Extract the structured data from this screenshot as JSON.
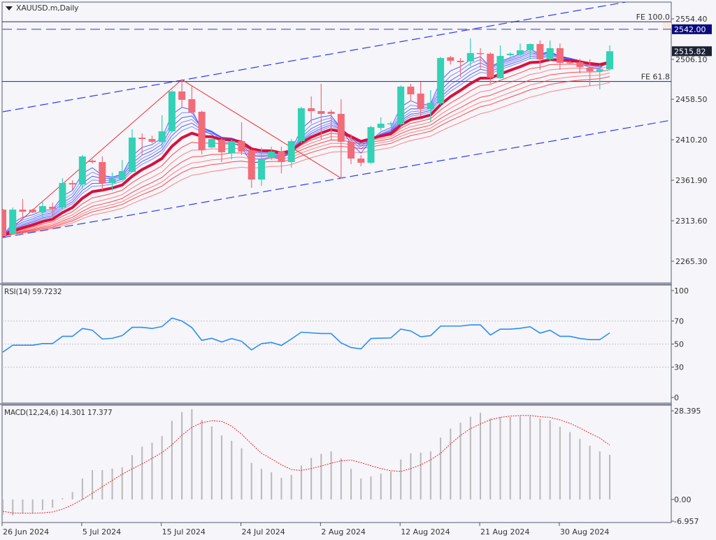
{
  "header": {
    "symbol_label": "XAUUSD.m,Daily"
  },
  "colors": {
    "bull": "#33d1b5",
    "bear": "#f26b78",
    "background": "#f5f5fa",
    "short_ema": "#3444ff",
    "long_ema": "#ff3636",
    "main_ema": "#d8103c",
    "rsi": "#2b8ef0",
    "macd_hist": "#b9b9b9",
    "macd_signal": "#ee2222",
    "channel": "#2a3cf0",
    "level_box": "#0b0b7c",
    "price_box": "#1c2233"
  },
  "chart_data": [
    {
      "type": "candlestick",
      "title": "XAUUSD.m,Daily",
      "ylim": [
        2248,
        2578
      ],
      "y_ticks": [
        "2554.40",
        "2506.10",
        "2458.50",
        "2410.20",
        "2361.90",
        "2313.60",
        "2265.30"
      ],
      "x_ticks": [
        {
          "label": "26 Jun 2024",
          "bar": 0
        },
        {
          "label": "5 Jul 2024",
          "bar": 8
        },
        {
          "label": "15 Jul 2024",
          "bar": 16
        },
        {
          "label": "24 Jul 2024",
          "bar": 24
        },
        {
          "label": "2 Aug 2024",
          "bar": 32
        },
        {
          "label": "12 Aug 2024",
          "bar": 40
        },
        {
          "label": "21 Aug 2024",
          "bar": 48
        },
        {
          "label": "30 Aug 2024",
          "bar": 56
        }
      ],
      "ohlc": [
        [
          2326.9,
          2327.8,
          2294.0,
          2295.3
        ],
        [
          2297.8,
          2329.4,
          2297.0,
          2326.9
        ],
        [
          2326.9,
          2339.4,
          2316.9,
          2324.4
        ],
        [
          2326.9,
          2327.8,
          2322.8,
          2323.6
        ],
        [
          2323.6,
          2336.9,
          2316.9,
          2331.1
        ],
        [
          2330.3,
          2335.3,
          2319.0,
          2327.8
        ],
        [
          2329.4,
          2364.4,
          2327.8,
          2358.6
        ],
        [
          2358.6,
          2361.9,
          2350.3,
          2356.9
        ],
        [
          2356.9,
          2392.0,
          2351.9,
          2390.3
        ],
        [
          2385.3,
          2386.9,
          2382.0,
          2383.6
        ],
        [
          2383.6,
          2390.3,
          2350.3,
          2358.6
        ],
        [
          2358.6,
          2371.1,
          2349.4,
          2363.6
        ],
        [
          2362.8,
          2386.1,
          2361.9,
          2372.8
        ],
        [
          2371.9,
          2422.8,
          2371.1,
          2412.8
        ],
        [
          2412.8,
          2417.8,
          2391.1,
          2411.1
        ],
        [
          2411.1,
          2415.0,
          2406.0,
          2407.8
        ],
        [
          2407.8,
          2439.4,
          2400.3,
          2420.3
        ],
        [
          2420.3,
          2469.4,
          2418.6,
          2467.8
        ],
        [
          2467.8,
          2481.9,
          2449.4,
          2457.8
        ],
        [
          2458.6,
          2474.4,
          2441.1,
          2442.8
        ],
        [
          2443.6,
          2445.0,
          2392.8,
          2397.8
        ],
        [
          2401.1,
          2412.8,
          2400.3,
          2411.1
        ],
        [
          2410.3,
          2412.0,
          2383.6,
          2395.3
        ],
        [
          2394.4,
          2410.3,
          2386.9,
          2408.6
        ],
        [
          2408.6,
          2431.1,
          2391.9,
          2396.1
        ],
        [
          2397.8,
          2399.0,
          2352.8,
          2362.8
        ],
        [
          2362.8,
          2401.0,
          2355.3,
          2386.9
        ],
        [
          2388.6,
          2402.0,
          2386.1,
          2396.1
        ],
        [
          2396.1,
          2402.0,
          2370.3,
          2383.6
        ],
        [
          2383.6,
          2411.1,
          2377.0,
          2408.6
        ],
        [
          2408.6,
          2449.4,
          2406.0,
          2447.8
        ],
        [
          2447.8,
          2461.9,
          2429.4,
          2444.4
        ],
        [
          2444.4,
          2476.9,
          2410.3,
          2441.1
        ],
        [
          2443.6,
          2446.0,
          2410.0,
          2441.1
        ],
        [
          2441.1,
          2458.6,
          2364.4,
          2407.8
        ],
        [
          2407.8,
          2416.9,
          2381.1,
          2387.8
        ],
        [
          2387.8,
          2391.9,
          2378.6,
          2382.8
        ],
        [
          2382.8,
          2426.9,
          2381.1,
          2425.3
        ],
        [
          2424.4,
          2437.0,
          2421.0,
          2429.4
        ],
        [
          2429.4,
          2432.0,
          2426.9,
          2429.8
        ],
        [
          2428.6,
          2475.0,
          2426.9,
          2473.6
        ],
        [
          2473.6,
          2476.9,
          2456.1,
          2464.4
        ],
        [
          2465.3,
          2479.4,
          2437.8,
          2446.9
        ],
        [
          2446.9,
          2469.4,
          2432.0,
          2454.4
        ],
        [
          2453.6,
          2509.0,
          2452.0,
          2507.7
        ],
        [
          2508.6,
          2510.2,
          2500.0,
          2504.4
        ],
        [
          2504.4,
          2507.7,
          2485.3,
          2502.7
        ],
        [
          2503.6,
          2531.1,
          2497.8,
          2513.6
        ],
        [
          2513.6,
          2519.4,
          2493.6,
          2512.8
        ],
        [
          2512.8,
          2514.5,
          2476.9,
          2484.4
        ],
        [
          2483.6,
          2522.7,
          2483.0,
          2510.2
        ],
        [
          2511.1,
          2514.5,
          2509.4,
          2512.8
        ],
        [
          2511.9,
          2525.0,
          2510.2,
          2516.9
        ],
        [
          2516.9,
          2525.0,
          2506.1,
          2524.4
        ],
        [
          2524.4,
          2528.6,
          2493.6,
          2506.1
        ],
        [
          2506.1,
          2528.6,
          2503.6,
          2519.4
        ],
        [
          2519.4,
          2525.0,
          2493.6,
          2501.9
        ],
        [
          2502.7,
          2504.4,
          2500.0,
          2501.9
        ],
        [
          2502.7,
          2506.9,
          2489.4,
          2496.9
        ],
        [
          2496.1,
          2506.1,
          2474.4,
          2491.9
        ],
        [
          2491.9,
          2499.4,
          2470.3,
          2494.4
        ],
        [
          2494.4,
          2522.7,
          2492.8,
          2515.82
        ]
      ],
      "levels": [
        {
          "label": "FE 100.0",
          "price": 2551.0,
          "style": "solid"
        },
        {
          "label": "FE 61.8",
          "price": 2479.7,
          "style": "solid"
        },
        {
          "label": "2542.00",
          "price": 2542.0,
          "style": "dashed"
        }
      ],
      "current_price": {
        "label": "2515.82",
        "price": 2515.82
      },
      "fibo_points": [
        {
          "bar": 0,
          "price": 2295.3
        },
        {
          "bar": 18,
          "price": 2481.9
        },
        {
          "bar": 34,
          "price": 2364.4
        }
      ],
      "channel": [
        {
          "from": {
            "bar": 0,
            "price": 2443.6
          },
          "to": {
            "bar": 62.6,
            "price": 2574.4
          }
        },
        {
          "from": {
            "bar": 0,
            "price": 2293.6
          },
          "to": {
            "bar": 67.2,
            "price": 2433.6
          }
        }
      ]
    },
    {
      "type": "line",
      "title": "RSI(14) 59.7232",
      "ylim": [
        0,
        100
      ],
      "y_ticks": [
        "100",
        "70",
        "50",
        "30",
        "0"
      ],
      "guides": [
        70,
        50,
        30
      ],
      "values": [
        43,
        49,
        49,
        49,
        50.4,
        50.4,
        56.7,
        56.7,
        63.5,
        62,
        54.4,
        55,
        57.3,
        64.5,
        64.5,
        63.5,
        65.2,
        72.6,
        70,
        64.3,
        53.2,
        55,
        51.8,
        54.8,
        52.4,
        44.9,
        50.4,
        51.4,
        48.8,
        54.4,
        60.3,
        59.7,
        59.1,
        59.1,
        51,
        47,
        45.8,
        54.8,
        55.1,
        55.3,
        63,
        61.3,
        56.3,
        57.3,
        65.6,
        65.6,
        65.6,
        66.6,
        66.6,
        57.9,
        62.9,
        62.9,
        63.7,
        65,
        59.5,
        62,
        56.7,
        56.7,
        54.8,
        53.8,
        53.8,
        59.7
      ]
    },
    {
      "type": "bar",
      "title": "MACD(12,24,6) 14.301 17.377",
      "y_ticks": [
        "28.395",
        "0.00",
        "-6.957"
      ],
      "ylim": [
        -6.957,
        28.395
      ],
      "histogram": [
        -5,
        -5.1,
        -4.4,
        -4.4,
        -3.4,
        -2.6,
        0.4,
        2.4,
        6.7,
        9.4,
        9.4,
        9.9,
        10.3,
        14.2,
        16.9,
        18.2,
        20.3,
        25.2,
        28,
        28.9,
        25.5,
        23.4,
        20.5,
        18.8,
        16.4,
        11.7,
        9.8,
        8.7,
        6.9,
        7.9,
        10.9,
        13.3,
        14.6,
        15.4,
        13.2,
        9.8,
        6.7,
        7.4,
        8.3,
        9,
        12.8,
        14.8,
        15,
        15.4,
        19.8,
        22.7,
        24.6,
        26.5,
        27.8,
        26,
        26.4,
        26.4,
        26.7,
        26.7,
        25.9,
        25.4,
        23.3,
        21.6,
        19.4,
        17.2,
        15.4,
        14.3
      ],
      "signal": [
        -3.8,
        -4.3,
        -4.4,
        -4.4,
        -4.3,
        -4,
        -3.1,
        -1.7,
        0,
        2,
        4.1,
        6.1,
        8.1,
        9.8,
        11.4,
        13.2,
        15,
        17.5,
        20.6,
        23.1,
        24.6,
        25.2,
        25,
        23.5,
        20.9,
        17.8,
        14.8,
        13,
        11.1,
        9.6,
        9.3,
        9.9,
        10.7,
        11.6,
        12.4,
        12.6,
        11.8,
        10.8,
        9.9,
        9.2,
        9,
        9.9,
        11.1,
        12.7,
        14.8,
        17.8,
        20.5,
        22.7,
        24.2,
        25.5,
        26.3,
        26.7,
        26.9,
        26.9,
        26.5,
        26.3,
        25.5,
        24.4,
        22.9,
        21.2,
        19.7,
        17.4
      ]
    }
  ]
}
